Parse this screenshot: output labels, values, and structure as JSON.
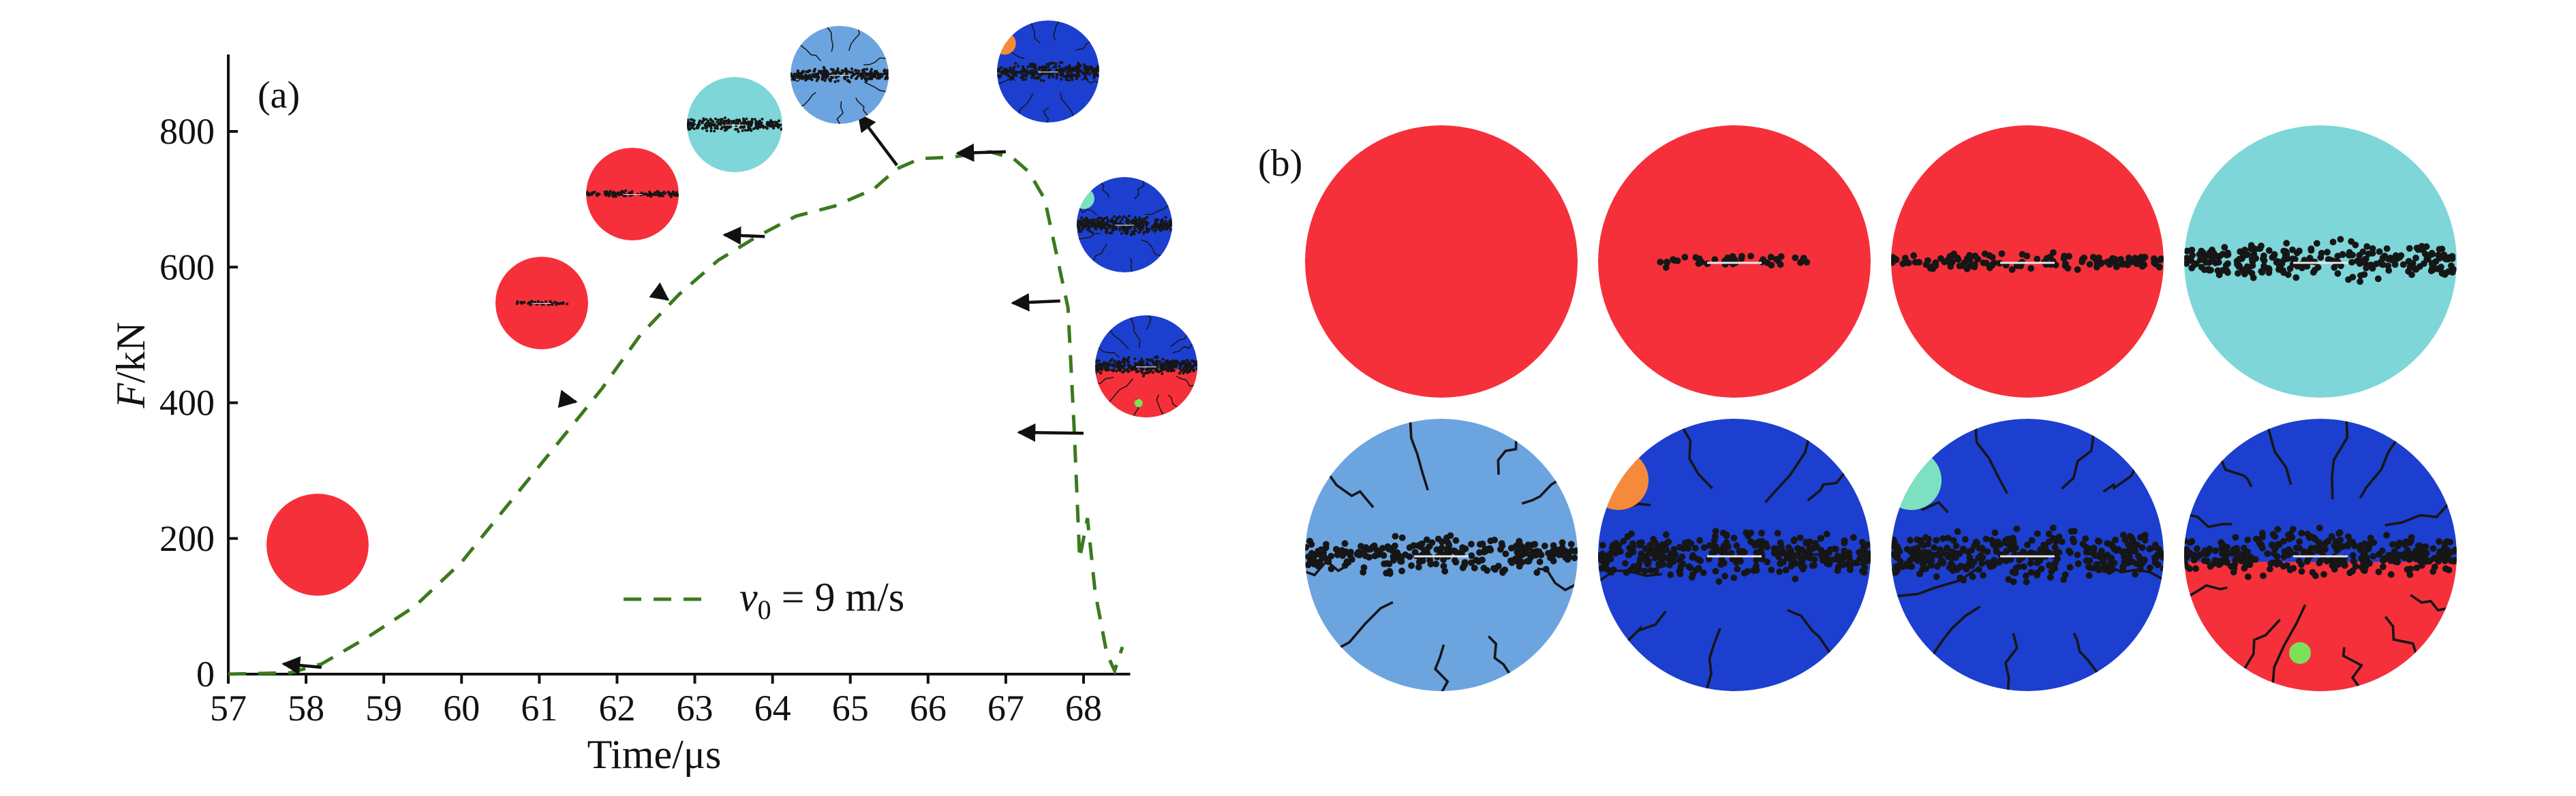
{
  "panels": {
    "a_label": "(a)",
    "b_label": "(b)"
  },
  "colors": {
    "red": "#f5303a",
    "cyan": "#7ed6d8",
    "light_blue": "#6ca4e0",
    "dark_blue": "#1c3fd0",
    "orange": "#f58a3a",
    "green_curve": "#3a7a1e",
    "crack": "#161616"
  },
  "chart_data": {
    "type": "line",
    "xlabel": "Time/μs",
    "ylabel_var": "F",
    "ylabel_unit": "/kN",
    "xlim": [
      57,
      68.6
    ],
    "ylim": [
      0,
      900
    ],
    "xticks": [
      57,
      58,
      59,
      60,
      61,
      62,
      63,
      64,
      65,
      66,
      67,
      68
    ],
    "yticks": [
      0,
      200,
      400,
      600,
      800
    ],
    "legend": {
      "var": "v",
      "sub": "0",
      "text": " = 9 m/s"
    },
    "series": [
      {
        "name": "v0 = 9 m/s",
        "style": "dashed",
        "x": [
          57.0,
          57.8,
          58.2,
          58.8,
          59.4,
          60.0,
          60.6,
          61.2,
          61.8,
          62.3,
          62.8,
          63.3,
          63.8,
          64.3,
          64.8,
          65.3,
          65.6,
          65.9,
          66.3,
          66.8,
          67.1,
          67.3,
          67.5,
          67.65,
          67.8,
          67.88,
          67.95,
          68.05,
          68.15,
          68.3,
          68.4,
          68.5
        ],
        "y": [
          0,
          2,
          15,
          55,
          100,
          165,
          250,
          335,
          420,
          500,
          560,
          610,
          645,
          675,
          690,
          715,
          745,
          760,
          762,
          770,
          760,
          740,
          700,
          620,
          540,
          360,
          170,
          230,
          120,
          30,
          5,
          40
        ]
      }
    ],
    "snapshots": [
      {
        "x": 58.2,
        "y": 0,
        "state": "red-intact"
      },
      {
        "x": 61.3,
        "y": 395,
        "state": "red-small-crack"
      },
      {
        "x": 62.5,
        "y": 555,
        "state": "red-crack"
      },
      {
        "x": 63.9,
        "y": 635,
        "state": "cyan-crack"
      },
      {
        "x": 65.6,
        "y": 740,
        "state": "lightblue-crack"
      },
      {
        "x": 67.0,
        "y": 760,
        "state": "darkblue-crack"
      },
      {
        "x": 67.7,
        "y": 540,
        "state": "darkblue-broken"
      },
      {
        "x": 68.0,
        "y": 345,
        "state": "mixed-failed"
      }
    ]
  }
}
